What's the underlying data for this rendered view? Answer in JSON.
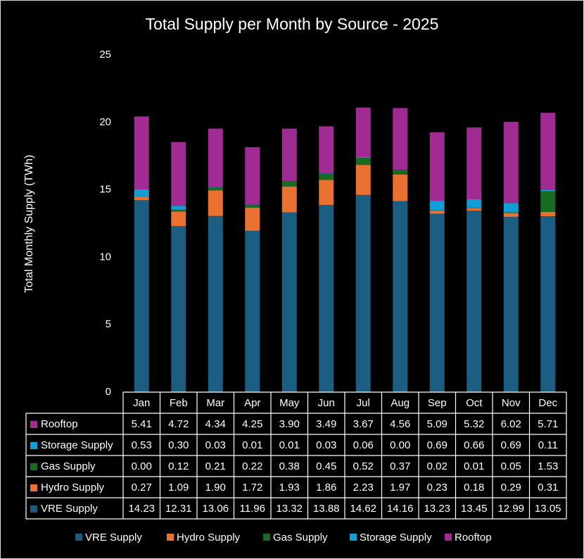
{
  "chart_data": {
    "type": "stacked-bar",
    "title": "Total Supply per Month by Source - 2025",
    "y_label": "Total Monthly Supply (TWh)",
    "categories": [
      "Jan",
      "Feb",
      "Mar",
      "Apr",
      "May",
      "Jun",
      "Jul",
      "Aug",
      "Sep",
      "Oct",
      "Nov",
      "Dec"
    ],
    "series": [
      {
        "name": "VRE Supply",
        "color": "#1b5e82",
        "values": [
          14.23,
          12.31,
          13.06,
          11.96,
          13.32,
          13.88,
          14.62,
          14.16,
          13.23,
          13.45,
          12.99,
          13.05
        ],
        "value_labels": [
          "14.23",
          "12.31",
          "13.06",
          "11.96",
          "13.32",
          "13.88",
          "14.62",
          "14.16",
          "13.23",
          "13.45",
          "12.99",
          "13.05"
        ]
      },
      {
        "name": "Hydro Supply",
        "color": "#e97132",
        "values": [
          0.27,
          1.09,
          1.9,
          1.72,
          1.93,
          1.86,
          2.23,
          1.97,
          0.23,
          0.18,
          0.29,
          0.31
        ],
        "value_labels": [
          "0.27",
          "1.09",
          "1.90",
          "1.72",
          "1.93",
          "1.86",
          "2.23",
          "1.97",
          "0.23",
          "0.18",
          "0.29",
          "0.31"
        ]
      },
      {
        "name": "Gas Supply",
        "color": "#196b24",
        "values": [
          0,
          0.12,
          0.21,
          0.22,
          0.38,
          0.45,
          0.52,
          0.37,
          0.02,
          0.01,
          0.05,
          1.53
        ],
        "value_labels": [
          "0.00",
          "0.12",
          "0.21",
          "0.22",
          "0.38",
          "0.45",
          "0.52",
          "0.37",
          "0.02",
          "0.01",
          "0.05",
          "1.53"
        ]
      },
      {
        "name": "Storage Supply",
        "color": "#0f9ed5",
        "values": [
          0.53,
          0.3,
          0.03,
          0.01,
          0.01,
          0.03,
          0.06,
          0,
          0.69,
          0.66,
          0.69,
          0.11
        ],
        "value_labels": [
          "0.53",
          "0.30",
          "0.03",
          "0.01",
          "0.01",
          "0.03",
          "0.06",
          "0.00",
          "0.69",
          "0.66",
          "0.69",
          "0.11"
        ]
      },
      {
        "name": "Rooftop",
        "color": "#a02b93",
        "values": [
          5.41,
          4.72,
          4.34,
          4.25,
          3.9,
          3.49,
          3.67,
          4.56,
          5.09,
          5.32,
          6.02,
          5.71
        ],
        "value_labels": [
          "5.41",
          "4.72",
          "4.34",
          "4.25",
          "3.90",
          "3.49",
          "3.67",
          "4.56",
          "5.09",
          "5.32",
          "6.02",
          "5.71"
        ]
      }
    ],
    "ylim": [
      0,
      25
    ],
    "yticks": [
      0,
      5,
      10,
      15,
      20,
      25
    ],
    "grid": false,
    "legend": "bottom"
  }
}
